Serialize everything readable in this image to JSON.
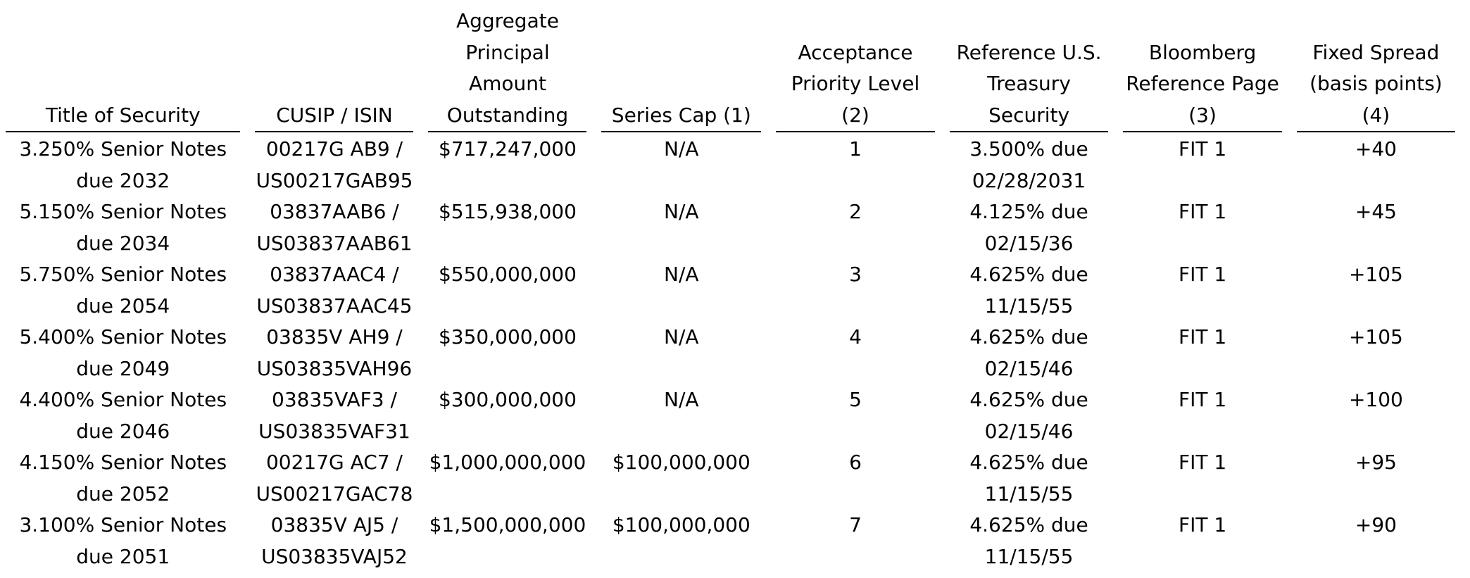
{
  "table": {
    "headers": [
      "Title of Security",
      "CUSIP / ISIN",
      "Aggregate Principal Amount Outstanding",
      "Series Cap (1)",
      "Acceptance Priority Level (2)",
      "Reference U.S. Treasury Security",
      "Bloomberg Reference Page (3)",
      "Fixed Spread (basis points) (4)"
    ],
    "rows": [
      [
        "3.250% Senior Notes due 2032",
        "00217G AB9 / US00217GAB95",
        "$717,247,000",
        "N/A",
        "1",
        "3.500% due 02/28/2031",
        "FIT 1",
        "+40"
      ],
      [
        "5.150% Senior Notes due 2034",
        "03837AAB6 / US03837AAB61",
        "$515,938,000",
        "N/A",
        "2",
        "4.125% due 02/15/36",
        "FIT 1",
        "+45"
      ],
      [
        "5.750% Senior Notes due 2054",
        "03837AAC4 / US03837AAC45",
        "$550,000,000",
        "N/A",
        "3",
        "4.625% due 11/15/55",
        "FIT 1",
        "+105"
      ],
      [
        "5.400% Senior Notes due 2049",
        "03835V AH9 / US03835VAH96",
        "$350,000,000",
        "N/A",
        "4",
        "4.625% due 02/15/46",
        "FIT 1",
        "+105"
      ],
      [
        "4.400% Senior Notes due 2046",
        "03835VAF3 / US03835VAF31",
        "$300,000,000",
        "N/A",
        "5",
        "4.625% due 02/15/46",
        "FIT 1",
        "+100"
      ],
      [
        "4.150% Senior Notes due 2052",
        "00217G AC7 / US00217GAC78",
        "$1,000,000,000",
        "$100,000,000",
        "6",
        "4.625% due 11/15/55",
        "FIT 1",
        "+95"
      ],
      [
        "3.100% Senior Notes due 2051",
        "03835V AJ5 / US03835VAJ52",
        "$1,500,000,000",
        "$100,000,000",
        "7",
        "4.625% due 11/15/55",
        "FIT 1",
        "+90"
      ]
    ]
  }
}
